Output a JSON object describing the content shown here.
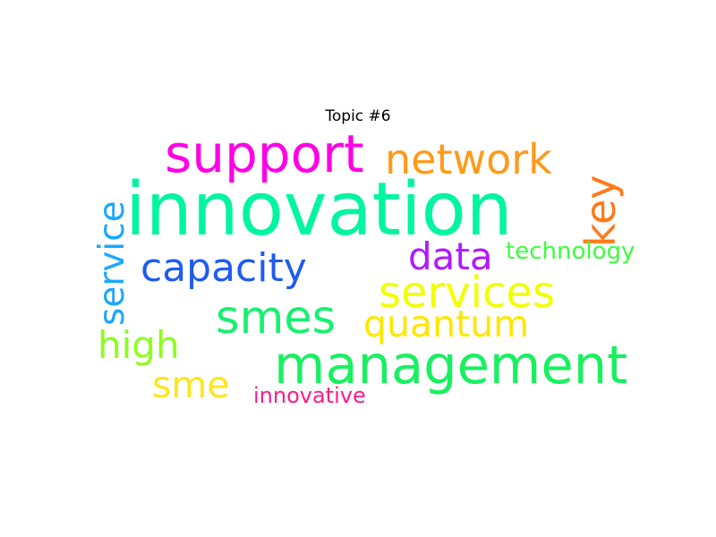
{
  "title": "Topic #6",
  "words": [
    {
      "text": "innovation",
      "color": "#00f5a0"
    },
    {
      "text": "support",
      "color": "#ff00e6"
    },
    {
      "text": "network",
      "color": "#ff9a1a"
    },
    {
      "text": "key",
      "color": "#ff7a1a"
    },
    {
      "text": "service",
      "color": "#1aa8ff"
    },
    {
      "text": "capacity",
      "color": "#1e5bf0"
    },
    {
      "text": "data",
      "color": "#b01aff"
    },
    {
      "text": "technology",
      "color": "#3cff3c"
    },
    {
      "text": "services",
      "color": "#f2ff00"
    },
    {
      "text": "smes",
      "color": "#18f070"
    },
    {
      "text": "quantum",
      "color": "#ffe600"
    },
    {
      "text": "high",
      "color": "#8cff1a"
    },
    {
      "text": "management",
      "color": "#18f060"
    },
    {
      "text": "sme",
      "color": "#ffe61a"
    },
    {
      "text": "innovative",
      "color": "#ff1a8c"
    }
  ]
}
